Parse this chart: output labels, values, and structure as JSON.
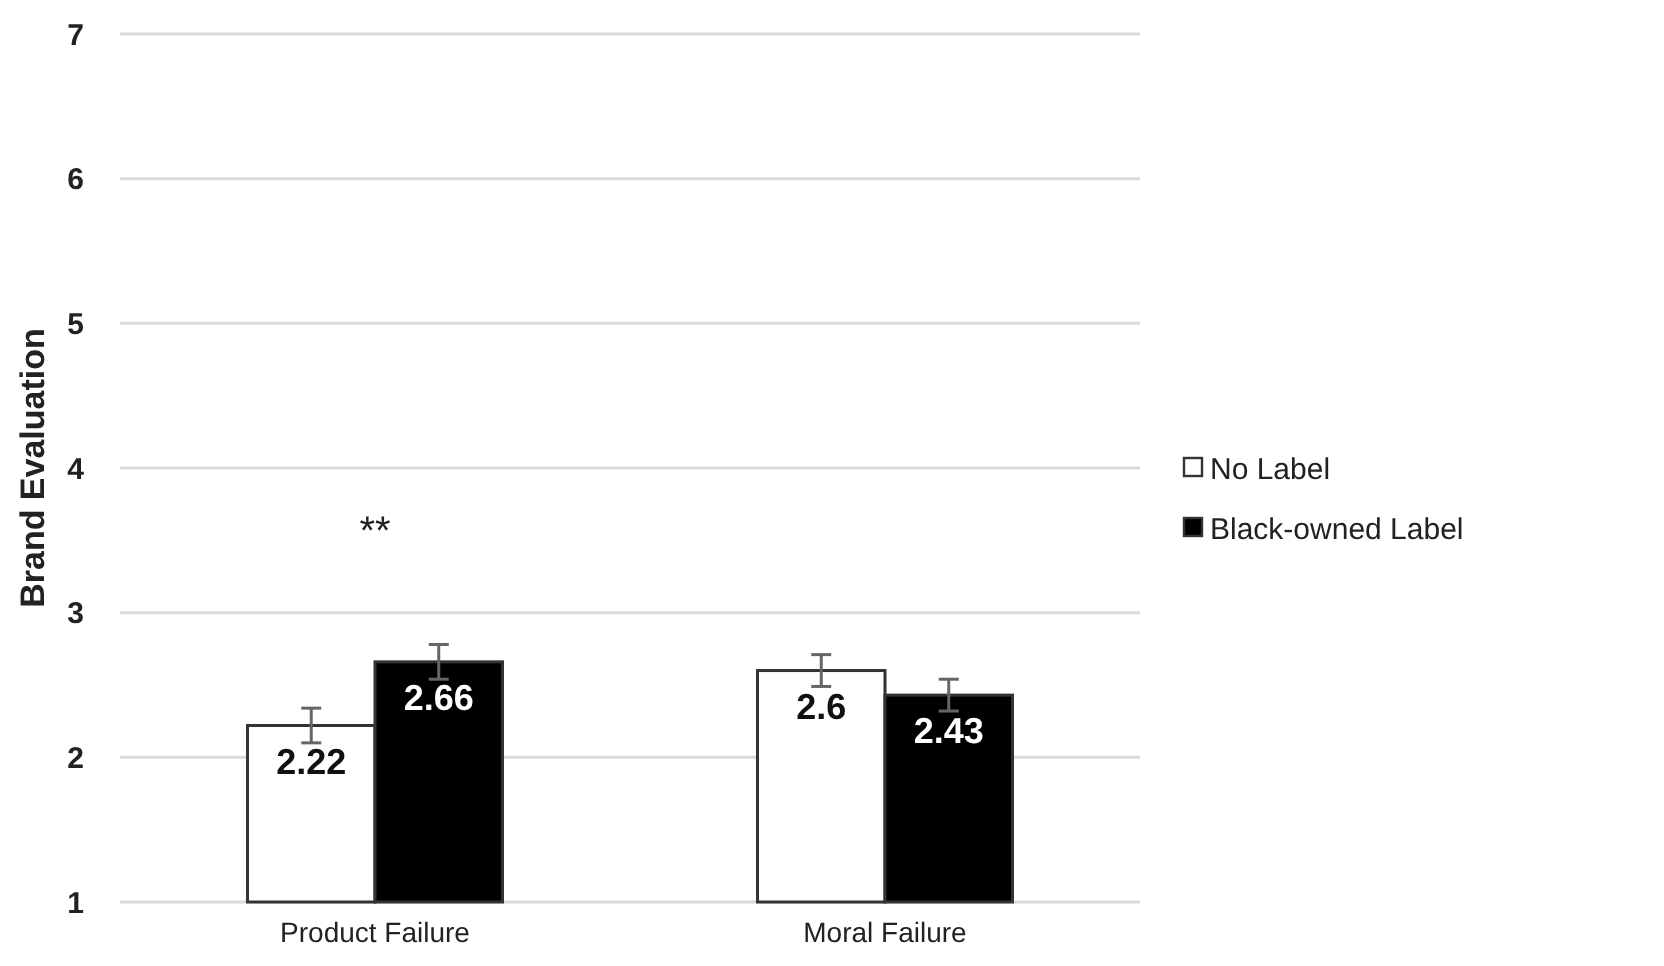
{
  "chart_data": {
    "type": "bar",
    "ylabel": "Brand Evaluation",
    "categories": [
      "Product Failure",
      "Moral Failure"
    ],
    "series": [
      {
        "name": "No Label",
        "color": "#ffffff",
        "values": [
          2.22,
          2.6
        ],
        "errors": [
          0.12,
          0.11
        ]
      },
      {
        "name": "Black-owned Label",
        "color": "#000000",
        "values": [
          2.66,
          2.43
        ],
        "errors": [
          0.12,
          0.11
        ]
      }
    ],
    "ylim": [
      1,
      7
    ],
    "yticks": [
      1,
      2,
      3,
      4,
      5,
      6,
      7
    ],
    "grid": "y",
    "legend": "right",
    "data_labels": true,
    "annotations": [
      "**"
    ]
  }
}
